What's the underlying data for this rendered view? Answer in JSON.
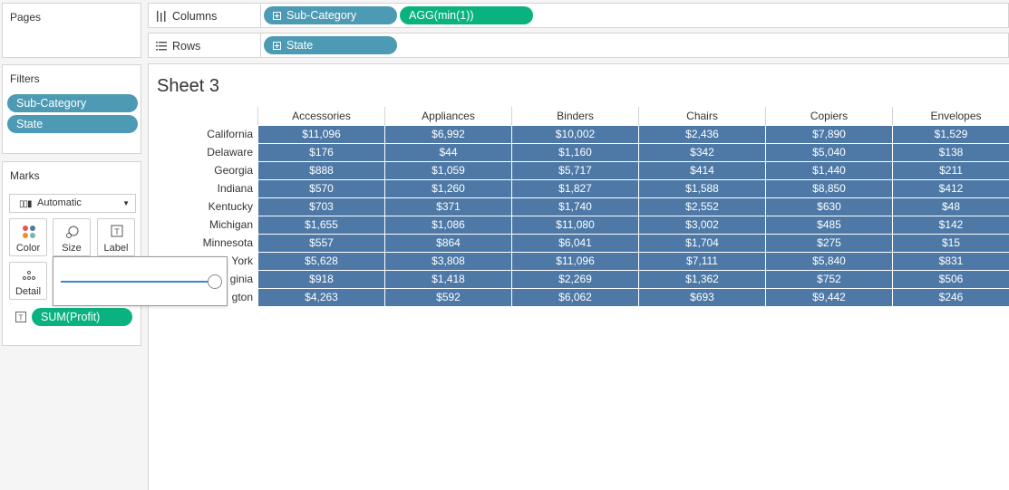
{
  "pages": {
    "title": "Pages"
  },
  "filters": {
    "title": "Filters",
    "items": [
      "Sub-Category",
      "State"
    ]
  },
  "marks": {
    "title": "Marks",
    "type": "Automatic",
    "buttons": {
      "color": "Color",
      "size": "Size",
      "label": "Label",
      "detail": "Detail"
    },
    "field": "SUM(Profit)"
  },
  "columns": {
    "label": "Columns",
    "pills": [
      "Sub-Category",
      "AGG(min(1))"
    ]
  },
  "rows": {
    "label": "Rows",
    "pills": [
      "State"
    ]
  },
  "sheet": {
    "title": "Sheet 3"
  },
  "size_slider": {
    "level": 1.0
  },
  "colors": {
    "pill_blue": "#4d9ab4",
    "pill_green": "#0ab27f",
    "cell_fill": "#4e79a7"
  },
  "chart_data": {
    "type": "table",
    "columns": [
      "Accessories",
      "Appliances",
      "Binders",
      "Chairs",
      "Copiers",
      "Envelopes"
    ],
    "rows": [
      "California",
      "Delaware",
      "Georgia",
      "Indiana",
      "Kentucky",
      "Michigan",
      "Minnesota",
      "York",
      "ginia",
      "gton"
    ],
    "values": [
      [
        "$11,096",
        "$6,992",
        "$10,002",
        "$2,436",
        "$7,890",
        "$1,529"
      ],
      [
        "$176",
        "$44",
        "$1,160",
        "$342",
        "$5,040",
        "$138"
      ],
      [
        "$888",
        "$1,059",
        "$5,717",
        "$414",
        "$1,440",
        "$211"
      ],
      [
        "$570",
        "$1,260",
        "$1,827",
        "$1,588",
        "$8,850",
        "$412"
      ],
      [
        "$703",
        "$371",
        "$1,740",
        "$2,552",
        "$630",
        "$48"
      ],
      [
        "$1,655",
        "$1,086",
        "$11,080",
        "$3,002",
        "$485",
        "$142"
      ],
      [
        "$557",
        "$864",
        "$6,041",
        "$1,704",
        "$275",
        "$15"
      ],
      [
        "$5,628",
        "$3,808",
        "$11,096",
        "$7,111",
        "$5,840",
        "$831"
      ],
      [
        "$918",
        "$1,418",
        "$2,269",
        "$1,362",
        "$752",
        "$506"
      ],
      [
        "$4,263",
        "$592",
        "$6,062",
        "$693",
        "$9,442",
        "$246"
      ]
    ]
  }
}
